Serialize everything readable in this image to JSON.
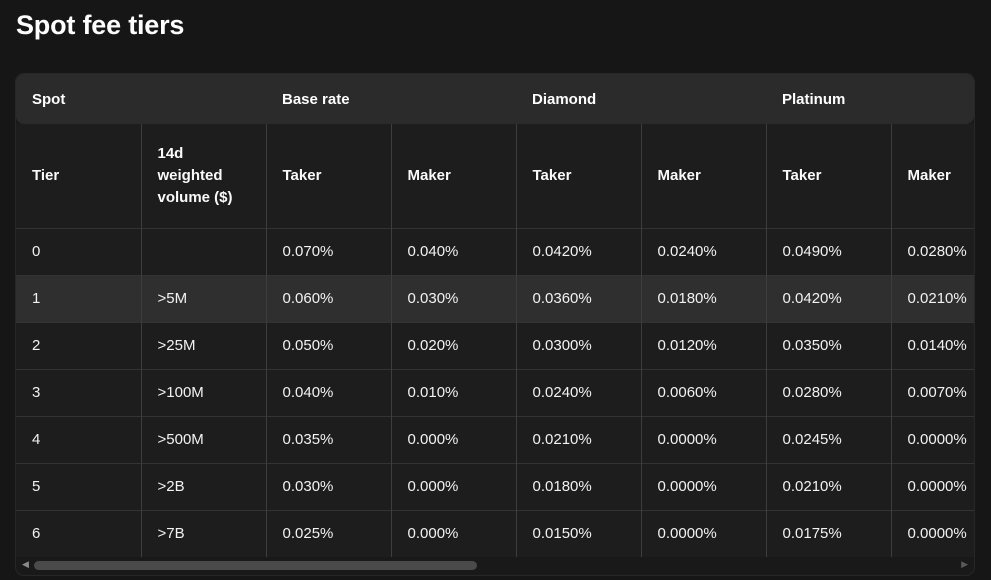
{
  "page": {
    "title": "Spot fee tiers"
  },
  "table": {
    "groups": [
      {
        "label": "Spot"
      },
      {
        "label": "Base rate"
      },
      {
        "label": "Diamond"
      },
      {
        "label": "Platinum"
      }
    ],
    "columns": [
      "Tier",
      "14d weighted volume ($)",
      "Taker",
      "Maker",
      "Taker",
      "Maker",
      "Taker",
      "Maker"
    ],
    "rows": [
      [
        "0",
        "",
        "0.070%",
        "0.040%",
        "0.0420%",
        "0.0240%",
        "0.0490%",
        "0.0280%"
      ],
      [
        "1",
        ">5M",
        "0.060%",
        "0.030%",
        "0.0360%",
        "0.0180%",
        "0.0420%",
        "0.0210%"
      ],
      [
        "2",
        ">25M",
        "0.050%",
        "0.020%",
        "0.0300%",
        "0.0120%",
        "0.0350%",
        "0.0140%"
      ],
      [
        "3",
        ">100M",
        "0.040%",
        "0.010%",
        "0.0240%",
        "0.0060%",
        "0.0280%",
        "0.0070%"
      ],
      [
        "4",
        ">500M",
        "0.035%",
        "0.000%",
        "0.0210%",
        "0.0000%",
        "0.0245%",
        "0.0000%"
      ],
      [
        "5",
        ">2B",
        "0.030%",
        "0.000%",
        "0.0180%",
        "0.0000%",
        "0.0210%",
        "0.0000%"
      ],
      [
        "6",
        ">7B",
        "0.025%",
        "0.000%",
        "0.0150%",
        "0.0000%",
        "0.0175%",
        "0.0000%"
      ]
    ],
    "highlighted_row_index": 1
  },
  "scrollbar": {
    "left_arrow": "◀",
    "right_arrow": "▶",
    "thumb_percent": 48
  },
  "colors": {
    "page_bg": "#161616",
    "card_bg": "#191919",
    "header_band_bg": "#2b2b2b",
    "row_bg": "#1d1d1d",
    "row_highlight_bg": "#2f2f2f",
    "border_vertical": "#3d3d3d",
    "border_horizontal": "#333333",
    "text": "#f2f2f2"
  }
}
